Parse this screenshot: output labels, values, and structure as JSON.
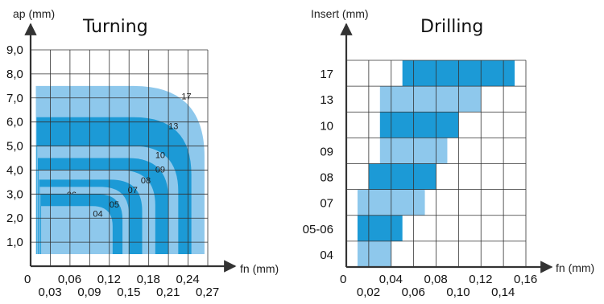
{
  "chart_data": [
    {
      "type": "area",
      "title": "Turning",
      "xlabel": "fn (mm)",
      "ylabel": "ap (mm)",
      "xlim": [
        0,
        0.27
      ],
      "ylim": [
        0,
        9.0
      ],
      "x_ticks_top": [
        "0,06",
        "0,12",
        "0,18",
        "0,24"
      ],
      "x_ticks_bottom": [
        "0,03",
        "0,09",
        "0,15",
        "0,21",
        "0,27"
      ],
      "x_zero_label": "0",
      "y_ticks": [
        "1,0",
        "2,0",
        "3,0",
        "4,0",
        "5,0",
        "6,0",
        "7,0",
        "8,0",
        "9,0"
      ],
      "grid": true,
      "series": [
        {
          "name": "17",
          "fn_max": 0.265,
          "ap_max": 7.5,
          "shade": "light"
        },
        {
          "name": "13",
          "fn_max": 0.245,
          "ap_max": 6.2,
          "shade": "dark"
        },
        {
          "name": "10",
          "fn_max": 0.225,
          "ap_max": 5.0,
          "shade": "light"
        },
        {
          "name": "09",
          "fn_max": 0.21,
          "ap_max": 4.5,
          "shade": "dark"
        },
        {
          "name": "08",
          "fn_max": 0.19,
          "ap_max": 4.0,
          "shade": "light"
        },
        {
          "name": "07",
          "fn_max": 0.17,
          "ap_max": 3.6,
          "shade": "dark"
        },
        {
          "name": "06",
          "fn_max": 0.15,
          "ap_max": 3.3,
          "shade": "light"
        },
        {
          "name": "05",
          "fn_max": 0.14,
          "ap_max": 3.0,
          "shade": "dark"
        },
        {
          "name": "04",
          "fn_max": 0.125,
          "ap_max": 2.5,
          "shade": "light"
        }
      ],
      "colors": {
        "light": "#8ec8ec",
        "dark": "#1c9ad6",
        "grid": "#333333"
      }
    },
    {
      "type": "bar",
      "title": "Drilling",
      "xlabel": "fn (mm)",
      "ylabel": "Insert (mm)",
      "xlim": [
        0,
        0.16
      ],
      "x_ticks_top": [
        "0,04",
        "0,08",
        "0,12",
        "0,16"
      ],
      "x_ticks_bottom": [
        "0,02",
        "0,06",
        "0,10",
        "0,14"
      ],
      "x_zero_label": "0",
      "categories": [
        "04",
        "05-06",
        "07",
        "08",
        "09",
        "10",
        "13",
        "17"
      ],
      "ranges": [
        {
          "insert": "04",
          "fn_min": 0.01,
          "fn_max": 0.04,
          "shade": "light"
        },
        {
          "insert": "05-06",
          "fn_min": 0.01,
          "fn_max": 0.05,
          "shade": "dark"
        },
        {
          "insert": "07",
          "fn_min": 0.01,
          "fn_max": 0.07,
          "shade": "light"
        },
        {
          "insert": "08",
          "fn_min": 0.02,
          "fn_max": 0.08,
          "shade": "dark"
        },
        {
          "insert": "09",
          "fn_min": 0.03,
          "fn_max": 0.09,
          "shade": "light"
        },
        {
          "insert": "10",
          "fn_min": 0.03,
          "fn_max": 0.1,
          "shade": "dark"
        },
        {
          "insert": "13",
          "fn_min": 0.03,
          "fn_max": 0.12,
          "shade": "light"
        },
        {
          "insert": "17",
          "fn_min": 0.05,
          "fn_max": 0.15,
          "shade": "dark"
        }
      ],
      "grid": true,
      "colors": {
        "light": "#8ec8ec",
        "dark": "#1c9ad6",
        "grid": "#333333"
      }
    }
  ]
}
